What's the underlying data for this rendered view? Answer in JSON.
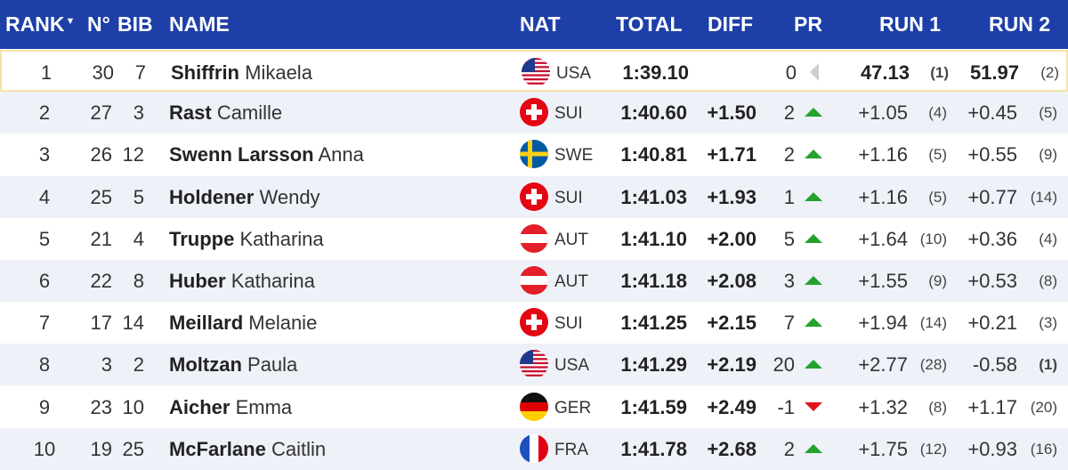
{
  "header": {
    "rank": "RANK",
    "no": "N°",
    "bib": "BIB",
    "name": "NAME",
    "nat": "NAT",
    "total": "TOTAL",
    "diff": "DIFF",
    "pr": "PR",
    "run1": "RUN 1",
    "run2": "RUN 2"
  },
  "colors": {
    "header_bg": "#1e3fa8",
    "alt_row": "#eef1f8",
    "up": "#23a32b",
    "down": "#e0141e"
  },
  "rows": [
    {
      "rank": "1",
      "no": "30",
      "bib": "7",
      "last": "Shiffrin",
      "first": "Mikaela",
      "nat": "USA",
      "flag": "usa",
      "total": "1:39.10",
      "diff": "",
      "pr": "0",
      "trend": "none",
      "run1": "47.13",
      "run1_rank": "(1)",
      "run2": "51.97",
      "run2_rank": "(2)"
    },
    {
      "rank": "2",
      "no": "27",
      "bib": "3",
      "last": "Rast",
      "first": "Camille",
      "nat": "SUI",
      "flag": "sui",
      "total": "1:40.60",
      "diff": "+1.50",
      "pr": "2",
      "trend": "up",
      "run1": "+1.05",
      "run1_rank": "(4)",
      "run2": "+0.45",
      "run2_rank": "(5)"
    },
    {
      "rank": "3",
      "no": "26",
      "bib": "12",
      "last": "Swenn Larsson",
      "first": "Anna",
      "nat": "SWE",
      "flag": "swe",
      "total": "1:40.81",
      "diff": "+1.71",
      "pr": "2",
      "trend": "up",
      "run1": "+1.16",
      "run1_rank": "(5)",
      "run2": "+0.55",
      "run2_rank": "(9)"
    },
    {
      "rank": "4",
      "no": "25",
      "bib": "5",
      "last": "Holdener",
      "first": "Wendy",
      "nat": "SUI",
      "flag": "sui",
      "total": "1:41.03",
      "diff": "+1.93",
      "pr": "1",
      "trend": "up",
      "run1": "+1.16",
      "run1_rank": "(5)",
      "run2": "+0.77",
      "run2_rank": "(14)"
    },
    {
      "rank": "5",
      "no": "21",
      "bib": "4",
      "last": "Truppe",
      "first": "Katharina",
      "nat": "AUT",
      "flag": "aut",
      "total": "1:41.10",
      "diff": "+2.00",
      "pr": "5",
      "trend": "up",
      "run1": "+1.64",
      "run1_rank": "(10)",
      "run2": "+0.36",
      "run2_rank": "(4)"
    },
    {
      "rank": "6",
      "no": "22",
      "bib": "8",
      "last": "Huber",
      "first": "Katharina",
      "nat": "AUT",
      "flag": "aut",
      "total": "1:41.18",
      "diff": "+2.08",
      "pr": "3",
      "trend": "up",
      "run1": "+1.55",
      "run1_rank": "(9)",
      "run2": "+0.53",
      "run2_rank": "(8)"
    },
    {
      "rank": "7",
      "no": "17",
      "bib": "14",
      "last": "Meillard",
      "first": "Melanie",
      "nat": "SUI",
      "flag": "sui",
      "total": "1:41.25",
      "diff": "+2.15",
      "pr": "7",
      "trend": "up",
      "run1": "+1.94",
      "run1_rank": "(14)",
      "run2": "+0.21",
      "run2_rank": "(3)"
    },
    {
      "rank": "8",
      "no": "3",
      "bib": "2",
      "last": "Moltzan",
      "first": "Paula",
      "nat": "USA",
      "flag": "usa",
      "total": "1:41.29",
      "diff": "+2.19",
      "pr": "20",
      "trend": "up",
      "run1": "+2.77",
      "run1_rank": "(28)",
      "run2": "-0.58",
      "run2_rank": "(1)"
    },
    {
      "rank": "9",
      "no": "23",
      "bib": "10",
      "last": "Aicher",
      "first": "Emma",
      "nat": "GER",
      "flag": "ger",
      "total": "1:41.59",
      "diff": "+2.49",
      "pr": "-1",
      "trend": "down",
      "run1": "+1.32",
      "run1_rank": "(8)",
      "run2": "+1.17",
      "run2_rank": "(20)"
    },
    {
      "rank": "10",
      "no": "19",
      "bib": "25",
      "last": "McFarlane",
      "first": "Caitlin",
      "nat": "FRA",
      "flag": "fra",
      "total": "1:41.78",
      "diff": "+2.68",
      "pr": "2",
      "trend": "up",
      "run1": "+1.75",
      "run1_rank": "(12)",
      "run2": "+0.93",
      "run2_rank": "(16)"
    }
  ]
}
